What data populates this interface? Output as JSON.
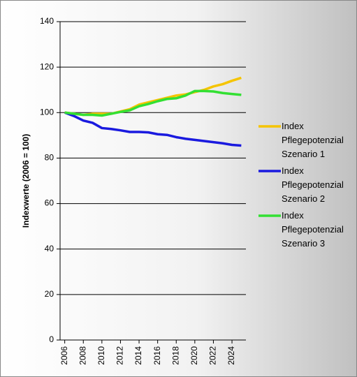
{
  "chart_data": {
    "type": "line",
    "y_label": "Indexwerte (2006 = 100)",
    "x": [
      2006,
      2007,
      2008,
      2009,
      2010,
      2011,
      2012,
      2013,
      2014,
      2015,
      2016,
      2017,
      2018,
      2019,
      2020,
      2021,
      2022,
      2023,
      2024,
      2025
    ],
    "xlim": [
      2005.5,
      2025.5
    ],
    "xticks": [
      2006,
      2008,
      2010,
      2012,
      2014,
      2016,
      2018,
      2020,
      2022,
      2024
    ],
    "ylim": [
      0,
      140
    ],
    "yticks": [
      0,
      20,
      40,
      60,
      80,
      100,
      120,
      140
    ],
    "grid": true,
    "legend": "right",
    "series": [
      {
        "name": "Index Pflegepotenzial Szenario 1",
        "color": "#f5c400",
        "values": [
          100,
          99.5,
          99,
          99.5,
          99.5,
          99.5,
          100.5,
          101.5,
          103.5,
          104.5,
          105.5,
          106.5,
          107.5,
          108,
          109,
          110,
          111.5,
          112.5,
          114,
          115.3
        ]
      },
      {
        "name": "Index Pflegepotenzial Szenario 2",
        "color": "#1a1adf",
        "values": [
          100,
          98.5,
          96.5,
          95.5,
          93.2,
          92.8,
          92.2,
          91.5,
          91.5,
          91.3,
          90.5,
          90.2,
          89.2,
          88.5,
          88,
          87.5,
          87,
          86.5,
          85.8,
          85.5
        ]
      },
      {
        "name": "Index Pflegepotenzial Szenario 3",
        "color": "#33e033",
        "values": [
          100,
          99.5,
          99,
          99,
          98.7,
          99.5,
          100.3,
          101,
          102.8,
          103.8,
          105,
          106,
          106.3,
          107.5,
          109.5,
          109.5,
          109.3,
          108.6,
          108.2,
          107.8
        ]
      }
    ]
  }
}
